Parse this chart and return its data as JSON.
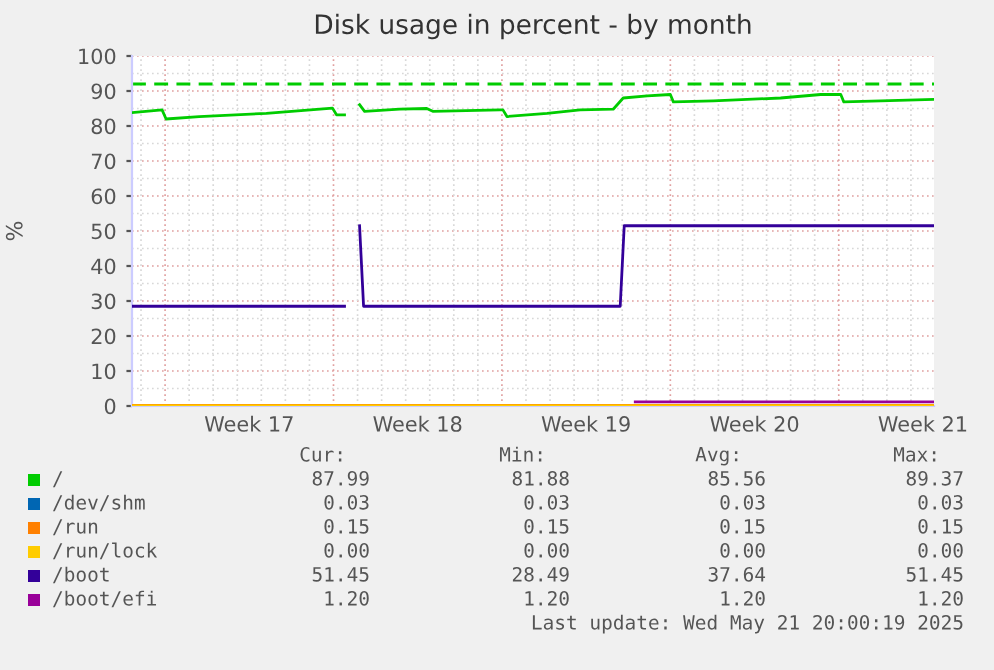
{
  "chart_data": {
    "type": "line",
    "title": "Disk usage in percent - by month",
    "ylabel": "%",
    "xlim": [
      "2025-04-19T15:00",
      "2025-05-22T23:00"
    ],
    "xticks": [
      {
        "value": "2025-04-24T12:00",
        "label": "Week 17"
      },
      {
        "value": "2025-05-01T12:00",
        "label": "Week 18"
      },
      {
        "value": "2025-05-08T12:00",
        "label": "Week 19"
      },
      {
        "value": "2025-05-15T12:00",
        "label": "Week 20"
      },
      {
        "value": "2025-05-22T12:00",
        "label": "Week 21"
      }
    ],
    "ylim": [
      0,
      100
    ],
    "yticks": [
      0,
      10,
      20,
      30,
      40,
      50,
      60,
      70,
      80,
      90,
      100
    ],
    "grid": true,
    "legend": "bottom",
    "line_style": "solid",
    "marker": "none",
    "series": [
      {
        "name": "/",
        "color": "#00cc00",
        "x": [
          "2025-04-19T15:00",
          "2025-04-20T21:00",
          "2025-04-21T01:00",
          "2025-04-22T10:00",
          "2025-04-25T05:00",
          "2025-04-27T23:00",
          "2025-04-28T03:00",
          "2025-04-28T11:00",
          "2025-04-28T19:00",
          "2025-04-29T02:00",
          "2025-04-29T07:00",
          "2025-04-30T18:00",
          "2025-05-01T21:00",
          "2025-05-02T03:00",
          "2025-05-04T22:00",
          "2025-05-05T01:00",
          "2025-05-05T05:00",
          "2025-05-06T21:00",
          "2025-05-08T06:00",
          "2025-05-09T15:00",
          "2025-05-10T01:00",
          "2025-05-11T01:00",
          "2025-05-12T00:00",
          "2025-05-12T03:00",
          "2025-05-13T19:00",
          "2025-05-16T14:00",
          "2025-05-18T06:00",
          "2025-05-19T02:00",
          "2025-05-19T05:00",
          "2025-05-20T18:00",
          "2025-05-22T23:00"
        ],
        "values": [
          83.8,
          84.6,
          82.0,
          82.7,
          83.6,
          85.1,
          83.2,
          83.2,
          null,
          86.1,
          84.2,
          84.8,
          85.0,
          84.2,
          84.6,
          84.6,
          82.7,
          83.6,
          84.6,
          84.8,
          88.0,
          88.6,
          89.0,
          86.9,
          87.2,
          88.0,
          89.0,
          89.0,
          86.9,
          87.2,
          87.6
        ]
      },
      {
        "name": "/dev/shm",
        "color": "#0066b3"
      },
      {
        "name": "/run",
        "color": "#ff8000",
        "x": [
          "2025-04-19T15:00",
          "2025-05-22T23:00"
        ],
        "values": [
          0.2,
          0.2
        ]
      },
      {
        "name": "/run/lock",
        "color": "#ffcc00",
        "x": [
          "2025-04-19T15:00",
          "2025-05-22T23:00"
        ],
        "values": [
          0.0,
          0.0
        ]
      },
      {
        "name": "/boot",
        "color": "#330099",
        "x": [
          "2025-04-19T15:00",
          "2025-04-28T11:00",
          "2025-04-28T19:00",
          "2025-04-29T02:00",
          "2025-04-29T06:00",
          "2025-05-09T22:00",
          "2025-05-10T02:00",
          "2025-05-22T23:00"
        ],
        "values": [
          28.5,
          28.5,
          null,
          51.5,
          28.5,
          28.5,
          51.5,
          51.5
        ]
      },
      {
        "name": "/boot/efi",
        "color": "#990099",
        "x": [
          "2025-05-10T13:00",
          "2025-05-22T23:00"
        ],
        "values": [
          1.2,
          1.2
        ]
      }
    ],
    "ref_lines": [
      {
        "axis": "y",
        "value": 92,
        "color": "#00cc00",
        "line_style": "dashed"
      }
    ],
    "annotations": [
      "Cur:",
      "Min:",
      "Avg:",
      "Max:",
      "87.99",
      "81.88",
      "85.56",
      "89.37",
      "0.03",
      "0.03",
      "0.03",
      "0.03",
      "0.15",
      "0.15",
      "0.15",
      "0.15",
      "0.00",
      "0.00",
      "0.00",
      "0.00",
      "51.45",
      "28.49",
      "37.64",
      "51.45",
      "1.20",
      "1.20",
      "1.20",
      "1.20",
      "Last update: Wed May 21 20:00:19 2025"
    ]
  }
}
